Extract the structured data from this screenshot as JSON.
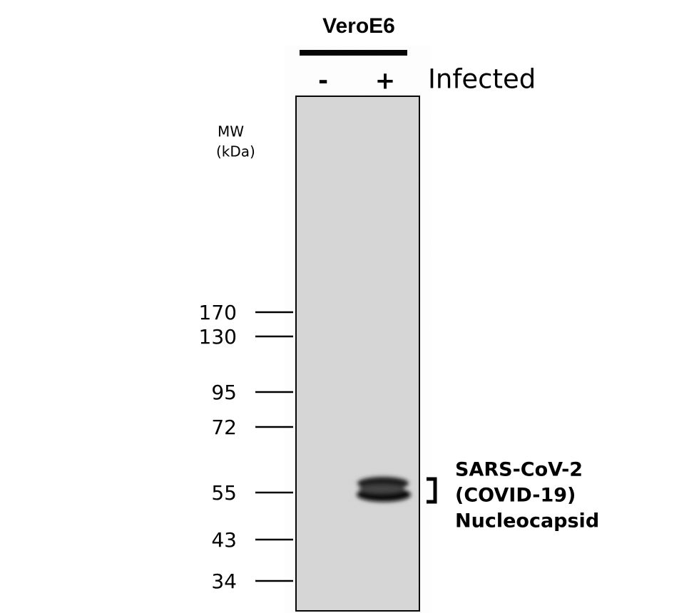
{
  "cell_line": "VeroE6",
  "lanes": [
    "-",
    "+"
  ],
  "condition": "Infected",
  "mw_title": "MW",
  "mw_unit": "(kDa)",
  "markers": [
    "170",
    "130",
    "95",
    "72",
    "55",
    "43",
    "34"
  ],
  "band_label": [
    "SARS-CoV-2",
    "(COVID-19)",
    "Nucleocapsid"
  ]
}
